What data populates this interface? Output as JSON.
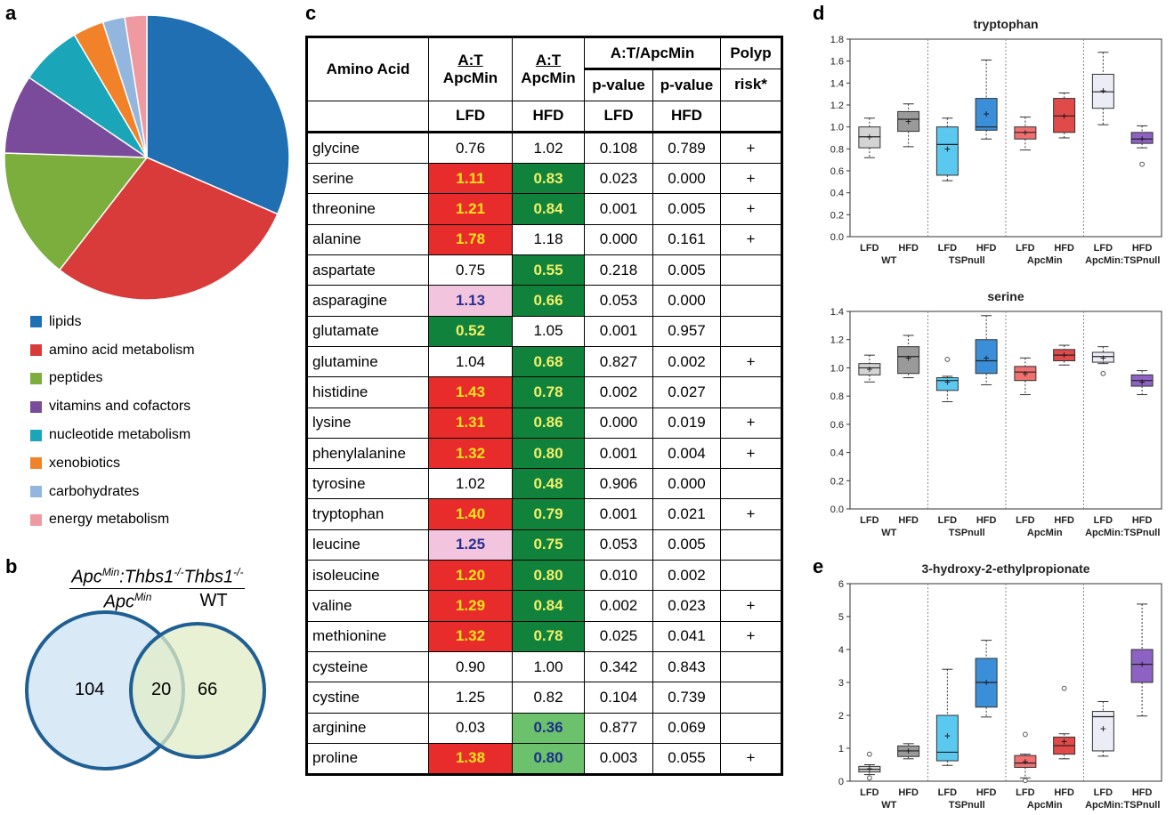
{
  "panels": {
    "a": "a",
    "b": "b",
    "c": "c",
    "d": "d",
    "e": "e"
  },
  "pie": {
    "slices": [
      {
        "label": "lipids",
        "value": 31.5,
        "color": "#1f6fb2"
      },
      {
        "label": "amino acid metabolism",
        "value": 29.0,
        "color": "#d93a3a"
      },
      {
        "label": "peptides",
        "value": 15.0,
        "color": "#7bae3c"
      },
      {
        "label": "vitamins and cofactors",
        "value": 9.0,
        "color": "#7a4b9a"
      },
      {
        "label": "nucleotide metabolism",
        "value": 7.0,
        "color": "#1aa6b8"
      },
      {
        "label": "xenobiotics",
        "value": 3.5,
        "color": "#f2822a"
      },
      {
        "label": "carbohydrates",
        "value": 2.5,
        "color": "#93b6de"
      },
      {
        "label": "energy metabolism",
        "value": 2.5,
        "color": "#ee9aa0"
      }
    ]
  },
  "venn": {
    "left_header_top": "Apc",
    "left_header_sup": "Min",
    "left_header_rest": ":Thbs1",
    "left_header_sup2": "-/-",
    "left_header_bottom": "Apc",
    "left_header_bottom_sup": "Min",
    "right_header_top": "Thbs1",
    "right_header_sup": "-/-",
    "right_header_bottom": "WT",
    "left_only": "104",
    "overlap": "20",
    "right_only": "66"
  },
  "table": {
    "col1": "Amino Acid",
    "col2_top": "A:T",
    "col2_bot": "ApcMin",
    "col3_top": "A:T",
    "col3_bot": "ApcMin",
    "col45_group": "A:T/ApcMin",
    "col4": "p-value",
    "col5": "p-value",
    "col6_top": "Polyp",
    "col6_bot": "risk*",
    "sub2": "LFD",
    "sub3": "HFD",
    "sub4": "LFD",
    "sub5": "HFD",
    "rows": [
      {
        "name": "glycine",
        "lfd": "0.76",
        "lfdc": "",
        "hfd": "1.02",
        "hfdc": "",
        "p1": "0.108",
        "p2": "0.789",
        "risk": "+"
      },
      {
        "name": "serine",
        "lfd": "1.11",
        "lfdc": "red",
        "hfd": "0.83",
        "hfdc": "green",
        "p1": "0.023",
        "p2": "0.000",
        "risk": "+"
      },
      {
        "name": "threonine",
        "lfd": "1.21",
        "lfdc": "red",
        "hfd": "0.84",
        "hfdc": "green",
        "p1": "0.001",
        "p2": "0.005",
        "risk": "+"
      },
      {
        "name": "alanine",
        "lfd": "1.78",
        "lfdc": "red",
        "hfd": "1.18",
        "hfdc": "",
        "p1": "0.000",
        "p2": "0.161",
        "risk": "+"
      },
      {
        "name": "aspartate",
        "lfd": "0.75",
        "lfdc": "",
        "hfd": "0.55",
        "hfdc": "green",
        "p1": "0.218",
        "p2": "0.005",
        "risk": ""
      },
      {
        "name": "asparagine",
        "lfd": "1.13",
        "lfdc": "pink",
        "hfd": "0.66",
        "hfdc": "green",
        "p1": "0.053",
        "p2": "0.000",
        "risk": ""
      },
      {
        "name": "glutamate",
        "lfd": "0.52",
        "lfdc": "green",
        "hfd": "1.05",
        "hfdc": "",
        "p1": "0.001",
        "p2": "0.957",
        "risk": ""
      },
      {
        "name": "glutamine",
        "lfd": "1.04",
        "lfdc": "",
        "hfd": "0.68",
        "hfdc": "green",
        "p1": "0.827",
        "p2": "0.002",
        "risk": "+"
      },
      {
        "name": "histidine",
        "lfd": "1.43",
        "lfdc": "red",
        "hfd": "0.78",
        "hfdc": "green",
        "p1": "0.002",
        "p2": "0.027",
        "risk": ""
      },
      {
        "name": "lysine",
        "lfd": "1.31",
        "lfdc": "red",
        "hfd": "0.86",
        "hfdc": "green",
        "p1": "0.000",
        "p2": "0.019",
        "risk": "+"
      },
      {
        "name": "phenylalanine",
        "lfd": "1.32",
        "lfdc": "red",
        "hfd": "0.80",
        "hfdc": "green",
        "p1": "0.001",
        "p2": "0.004",
        "risk": "+"
      },
      {
        "name": "tyrosine",
        "lfd": "1.02",
        "lfdc": "",
        "hfd": "0.48",
        "hfdc": "green",
        "p1": "0.906",
        "p2": "0.000",
        "risk": ""
      },
      {
        "name": "tryptophan",
        "lfd": "1.40",
        "lfdc": "red",
        "hfd": "0.79",
        "hfdc": "green",
        "p1": "0.001",
        "p2": "0.021",
        "risk": "+"
      },
      {
        "name": "leucine",
        "lfd": "1.25",
        "lfdc": "pink",
        "hfd": "0.75",
        "hfdc": "green",
        "p1": "0.053",
        "p2": "0.005",
        "risk": ""
      },
      {
        "name": "isoleucine",
        "lfd": "1.20",
        "lfdc": "red",
        "hfd": "0.80",
        "hfdc": "green",
        "p1": "0.010",
        "p2": "0.002",
        "risk": ""
      },
      {
        "name": "valine",
        "lfd": "1.29",
        "lfdc": "red",
        "hfd": "0.84",
        "hfdc": "green",
        "p1": "0.002",
        "p2": "0.023",
        "risk": "+"
      },
      {
        "name": "methionine",
        "lfd": "1.32",
        "lfdc": "red",
        "hfd": "0.78",
        "hfdc": "green",
        "p1": "0.025",
        "p2": "0.041",
        "risk": "+"
      },
      {
        "name": "cysteine",
        "lfd": "0.90",
        "lfdc": "",
        "hfd": "1.00",
        "hfdc": "",
        "p1": "0.342",
        "p2": "0.843",
        "risk": ""
      },
      {
        "name": "cystine",
        "lfd": "1.25",
        "lfdc": "",
        "hfd": "0.82",
        "hfdc": "",
        "p1": "0.104",
        "p2": "0.739",
        "risk": ""
      },
      {
        "name": "arginine",
        "lfd": "0.03",
        "lfdc": "",
        "hfd": "0.36",
        "hfdc": "lgreen",
        "p1": "0.877",
        "p2": "0.069",
        "risk": ""
      },
      {
        "name": "proline",
        "lfd": "1.38",
        "lfdc": "red",
        "hfd": "0.80",
        "hfdc": "lgreen",
        "p1": "0.003",
        "p2": "0.055",
        "risk": "+"
      }
    ]
  },
  "chart_data": [
    {
      "type": "box",
      "title": "tryptophan",
      "ylim": [
        0,
        1.8
      ],
      "yticks": [
        "0.0",
        "0.2",
        "0.4",
        "0.6",
        "0.8",
        "1.0",
        "1.2",
        "1.4",
        "1.6",
        "1.8"
      ],
      "categories": [
        "LFD",
        "HFD",
        "LFD",
        "HFD",
        "LFD",
        "HFD",
        "LFD",
        "HFD"
      ],
      "groups": [
        "WT",
        "TSPnull",
        "ApcMin",
        "ApcMin:TSPnull"
      ],
      "colors": [
        "#d4d4d4",
        "#9a9a9a",
        "#5bc8ef",
        "#3a8fd8",
        "#f07070",
        "#e14a4a",
        "#ececf6",
        "#8e62c2"
      ],
      "boxes": [
        {
          "min": 0.72,
          "q1": 0.81,
          "median": 0.91,
          "q3": 1.0,
          "max": 1.08,
          "mean": 0.91,
          "outliers": []
        },
        {
          "min": 0.82,
          "q1": 0.96,
          "median": 1.07,
          "q3": 1.14,
          "max": 1.21,
          "mean": 1.05,
          "outliers": []
        },
        {
          "min": 0.51,
          "q1": 0.56,
          "median": 0.84,
          "q3": 1.0,
          "max": 1.08,
          "mean": 0.8,
          "outliers": []
        },
        {
          "min": 0.89,
          "q1": 0.97,
          "median": 1.0,
          "q3": 1.26,
          "max": 1.61,
          "mean": 1.12,
          "outliers": []
        },
        {
          "min": 0.79,
          "q1": 0.89,
          "median": 0.95,
          "q3": 1.0,
          "max": 1.09,
          "mean": 0.95,
          "outliers": []
        },
        {
          "min": 0.9,
          "q1": 0.95,
          "median": 1.1,
          "q3": 1.26,
          "max": 1.31,
          "mean": 1.1,
          "outliers": []
        },
        {
          "min": 1.02,
          "q1": 1.17,
          "median": 1.32,
          "q3": 1.48,
          "max": 1.68,
          "mean": 1.33,
          "outliers": []
        },
        {
          "min": 0.81,
          "q1": 0.85,
          "median": 0.89,
          "q3": 0.95,
          "max": 1.01,
          "mean": 0.89,
          "outliers": [
            0.66
          ]
        }
      ]
    },
    {
      "type": "box",
      "title": "serine",
      "ylim": [
        0,
        1.4
      ],
      "yticks": [
        "0.0",
        "0.2",
        "0.4",
        "0.6",
        "0.8",
        "1.0",
        "1.2",
        "1.4"
      ],
      "categories": [
        "LFD",
        "HFD",
        "LFD",
        "HFD",
        "LFD",
        "HFD",
        "LFD",
        "HFD"
      ],
      "groups": [
        "WT",
        "TSPnull",
        "ApcMin",
        "ApcMin:TSPnull"
      ],
      "colors": [
        "#d4d4d4",
        "#9a9a9a",
        "#5bc8ef",
        "#3a8fd8",
        "#f07070",
        "#e14a4a",
        "#ececf6",
        "#8e62c2"
      ],
      "boxes": [
        {
          "min": 0.9,
          "q1": 0.95,
          "median": 1.0,
          "q3": 1.03,
          "max": 1.09,
          "mean": 0.99,
          "outliers": []
        },
        {
          "min": 0.93,
          "q1": 0.96,
          "median": 1.08,
          "q3": 1.15,
          "max": 1.23,
          "mean": 1.07,
          "outliers": []
        },
        {
          "min": 0.76,
          "q1": 0.84,
          "median": 0.91,
          "q3": 0.93,
          "max": 0.94,
          "mean": 0.9,
          "outliers": [
            1.06
          ]
        },
        {
          "min": 0.88,
          "q1": 0.96,
          "median": 1.05,
          "q3": 1.2,
          "max": 1.37,
          "mean": 1.07,
          "outliers": []
        },
        {
          "min": 0.81,
          "q1": 0.91,
          "median": 0.97,
          "q3": 1.01,
          "max": 1.07,
          "mean": 0.96,
          "outliers": []
        },
        {
          "min": 1.02,
          "q1": 1.05,
          "median": 1.09,
          "q3": 1.13,
          "max": 1.16,
          "mean": 1.09,
          "outliers": []
        },
        {
          "min": 1.03,
          "q1": 1.04,
          "median": 1.08,
          "q3": 1.11,
          "max": 1.15,
          "mean": 1.07,
          "outliers": [
            0.96
          ]
        },
        {
          "min": 0.81,
          "q1": 0.87,
          "median": 0.91,
          "q3": 0.95,
          "max": 0.98,
          "mean": 0.9,
          "outliers": []
        }
      ]
    },
    {
      "type": "box",
      "title": "3-hydroxy-2-ethylpropionate",
      "ylim": [
        0,
        6
      ],
      "yticks": [
        "0",
        "1",
        "2",
        "3",
        "4",
        "5",
        "6"
      ],
      "categories": [
        "LFD",
        "HFD",
        "LFD",
        "HFD",
        "LFD",
        "HFD",
        "LFD",
        "HFD"
      ],
      "groups": [
        "WT",
        "TSPnull",
        "ApcMin",
        "ApcMin:TSPnull"
      ],
      "colors": [
        "#d4d4d4",
        "#9a9a9a",
        "#5bc8ef",
        "#3a8fd8",
        "#f07070",
        "#e14a4a",
        "#ececf6",
        "#8e62c2"
      ],
      "boxes": [
        {
          "min": 0.2,
          "q1": 0.28,
          "median": 0.36,
          "q3": 0.45,
          "max": 0.5,
          "mean": 0.38,
          "outliers": [
            0.1,
            0.82
          ]
        },
        {
          "min": 0.68,
          "q1": 0.75,
          "median": 0.92,
          "q3": 1.07,
          "max": 1.14,
          "mean": 0.92,
          "outliers": []
        },
        {
          "min": 0.48,
          "q1": 0.62,
          "median": 0.88,
          "q3": 2.0,
          "max": 3.4,
          "mean": 1.38,
          "outliers": []
        },
        {
          "min": 1.95,
          "q1": 2.25,
          "median": 3.0,
          "q3": 3.73,
          "max": 4.28,
          "mean": 3.0,
          "outliers": []
        },
        {
          "min": 0.1,
          "q1": 0.42,
          "median": 0.55,
          "q3": 0.78,
          "max": 0.82,
          "mean": 0.6,
          "outliers": [
            1.42,
            0.02
          ]
        },
        {
          "min": 0.68,
          "q1": 0.82,
          "median": 1.08,
          "q3": 1.34,
          "max": 1.44,
          "mean": 1.2,
          "outliers": [
            2.82
          ]
        },
        {
          "min": 0.76,
          "q1": 0.92,
          "median": 1.96,
          "q3": 2.12,
          "max": 2.42,
          "mean": 1.6,
          "outliers": []
        },
        {
          "min": 1.98,
          "q1": 3.0,
          "median": 3.55,
          "q3": 4.0,
          "max": 5.38,
          "mean": 3.55,
          "outliers": []
        }
      ]
    }
  ]
}
